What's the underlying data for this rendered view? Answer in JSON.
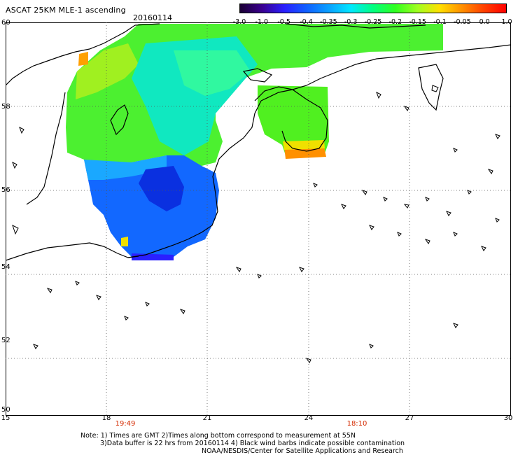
{
  "header": {
    "title": "ASCAT 25KM MLE-1 ascending",
    "date": "20160114"
  },
  "colorbar": {
    "labels": [
      "-3.0",
      "-1.0",
      "-0.5",
      "-0.4",
      "-0.35",
      "-0.3",
      "-0.25",
      "-0.2",
      "-0.15",
      "-0.1",
      "-0.05",
      "0.0",
      "1.0"
    ],
    "colors": [
      "#1a0033",
      "#3a0090",
      "#2a20ff",
      "#1060ff",
      "#0aa0ff",
      "#00e8ff",
      "#00ff80",
      "#30ff20",
      "#a0ff20",
      "#ffe000",
      "#ff9000",
      "#ff4000",
      "#ff0000"
    ]
  },
  "axes": {
    "lat_ticks": [
      "60",
      "58",
      "56",
      "54",
      "52",
      "50"
    ],
    "lon_ticks": [
      "15",
      "18",
      "21",
      "24",
      "27",
      "30"
    ],
    "times": [
      "19:49",
      "18:10"
    ]
  },
  "notes": [
    "Note: 1) Times are GMT 2)Times along bottom correspond to measurement at 55N",
    "3)Data buffer is 22 hrs from 20160114 4) Black wind barbs indicate possible contamination",
    "NOAA/NESDIS/Center for Satellite Applications and Research"
  ]
}
